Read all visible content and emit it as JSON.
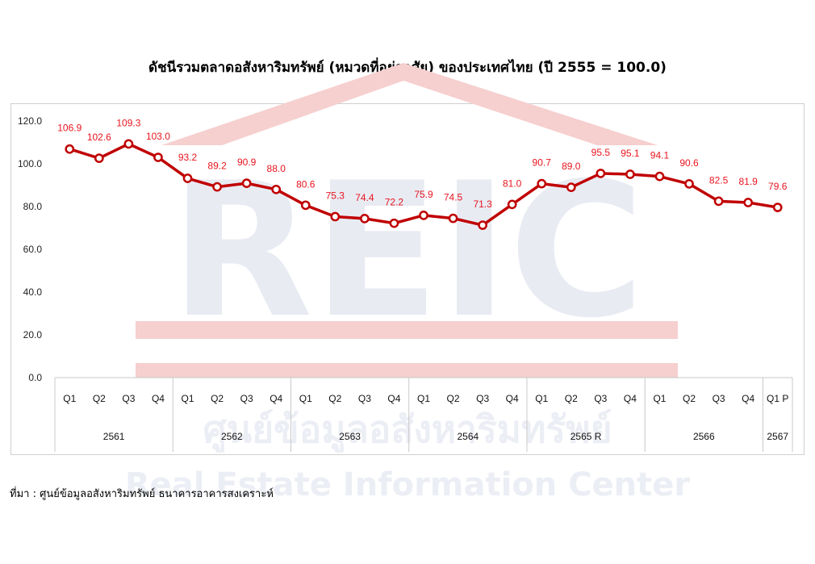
{
  "title": "ดัชนีรวมตลาดอสังหาริมทรัพย์ (หมวดที่อยู่อาศัย) ของประเทศไทย (ปี 2555 = 100.0)",
  "source": "ที่มา : ศูนย์ข้อมูลอสังหาริมทรัพย์ ธนาคารอาคารสงเคราะห์",
  "watermark": {
    "logo_text": "REIC",
    "thai_name": "ศูนย์ข้อมูลอสังหาริมทรัพย์",
    "english_name": "Real Estate Information Center"
  },
  "colors": {
    "series": "#c00000",
    "data_label": "#e8141e",
    "grid": "#c8c8c8"
  },
  "chart_data": {
    "type": "line",
    "title": "ดัชนีรวมตลาดอสังหาริมทรัพย์ (หมวดที่อยู่อาศัย) ของประเทศไทย (ปี 2555 = 100.0)",
    "categories": [
      "Q1",
      "Q2",
      "Q3",
      "Q4",
      "Q1",
      "Q2",
      "Q3",
      "Q4",
      "Q1",
      "Q2",
      "Q3",
      "Q4",
      "Q1",
      "Q2",
      "Q3",
      "Q4",
      "Q1",
      "Q2",
      "Q3",
      "Q4",
      "Q1",
      "Q2",
      "Q3",
      "Q4",
      "Q1 P"
    ],
    "groups": [
      {
        "label": "2561",
        "count": 4
      },
      {
        "label": "2562",
        "count": 4
      },
      {
        "label": "2563",
        "count": 4
      },
      {
        "label": "2564",
        "count": 4
      },
      {
        "label": "2565 R",
        "count": 4
      },
      {
        "label": "2566",
        "count": 4
      },
      {
        "label": "2567",
        "count": 1
      }
    ],
    "values": [
      106.9,
      102.6,
      109.3,
      103.0,
      93.2,
      89.2,
      90.9,
      88.0,
      80.6,
      75.3,
      74.4,
      72.2,
      75.9,
      74.5,
      71.3,
      81.0,
      90.7,
      89.0,
      95.5,
      95.1,
      94.1,
      90.6,
      82.5,
      81.9,
      79.6
    ],
    "labels": [
      "106.9",
      "102.6",
      "109.3",
      "103.0",
      "93.2",
      "89.2",
      "90.9",
      "88.0",
      "80.6",
      "75.3",
      "74.4",
      "72.2",
      "75.9",
      "74.5",
      "71.3",
      "81.0",
      "90.7",
      "89.0",
      "95.5",
      "95.1",
      "94.1",
      "90.6",
      "82.5",
      "81.9",
      "79.6"
    ],
    "ylim": [
      0,
      120
    ],
    "yticks": [
      "0.0",
      "20.0",
      "40.0",
      "60.0",
      "80.0",
      "100.0",
      "120.0"
    ],
    "grid": false,
    "legend": "none"
  }
}
